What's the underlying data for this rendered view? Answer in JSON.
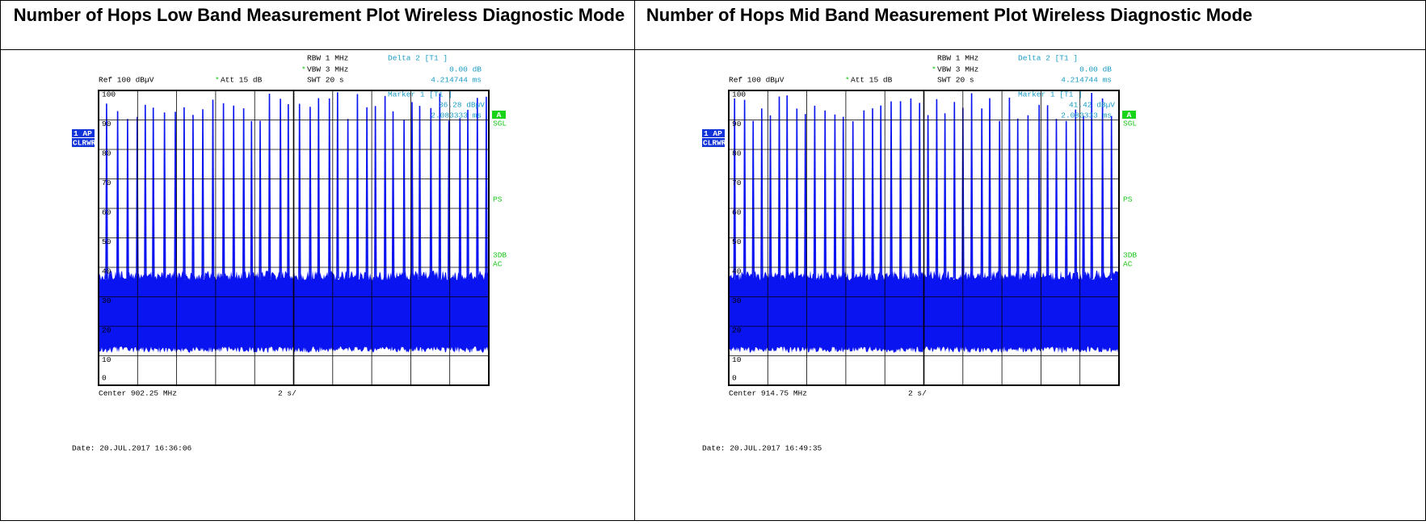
{
  "panels": [
    {
      "title": "Number of Hops Low Band Measurement Plot Wireless Diagnostic Mode",
      "rbw": "RBW 1 MHz",
      "vbw_flag": "*",
      "vbw": "VBW 3 MHz",
      "swt": "SWT 20 s",
      "delta": "Delta 2 [T1 ]",
      "delta_level": "0.00 dB",
      "delta_time": "4.214744 ms",
      "ref": "Ref 100 dBµV",
      "att_flag": "*",
      "att": "Att 15 dB",
      "marker": "Marker 1 [T1 ]",
      "marker_level": "36.28 dBµV",
      "marker_time": "2.083333 ms",
      "trace_mode": "1 AP",
      "trace_detector": "CLRWR",
      "trace_label": "A",
      "sweep": "SGL",
      "preset": "PS",
      "bandwidth": "3DB",
      "coupling": "AC",
      "y_labels": [
        "100",
        "90",
        "80",
        "70",
        "60",
        "50",
        "40",
        "30",
        "20",
        "10",
        "0"
      ],
      "center": "Center 902.25 MHz",
      "span": "2 s/",
      "date": "Date: 20.JUL.2017  16:36:06"
    },
    {
      "title": "Number of Hops Mid Band Measurement Plot Wireless Diagnostic Mode",
      "rbw": "RBW 1 MHz",
      "vbw_flag": "*",
      "vbw": "VBW 3 MHz",
      "swt": "SWT 20 s",
      "delta": "Delta 2 [T1 ]",
      "delta_level": "0.00 dB",
      "delta_time": "4.214744 ms",
      "ref": "Ref 100 dBµV",
      "att_flag": "*",
      "att": "Att 15 dB",
      "marker": "Marker 1 [T1 ]",
      "marker_level": "41.42 dBµV",
      "marker_time": "2.083333 ms",
      "trace_mode": "1 AP",
      "trace_detector": "CLRWR",
      "trace_label": "A",
      "sweep": "SGL",
      "preset": "PS",
      "bandwidth": "3DB",
      "coupling": "AC",
      "y_labels": [
        "100",
        "90",
        "80",
        "70",
        "60",
        "50",
        "40",
        "30",
        "20",
        "10",
        "0"
      ],
      "center": "Center 914.75 MHz",
      "span": "2 s/",
      "date": "Date: 20.JUL.2017  16:49:35"
    }
  ]
}
